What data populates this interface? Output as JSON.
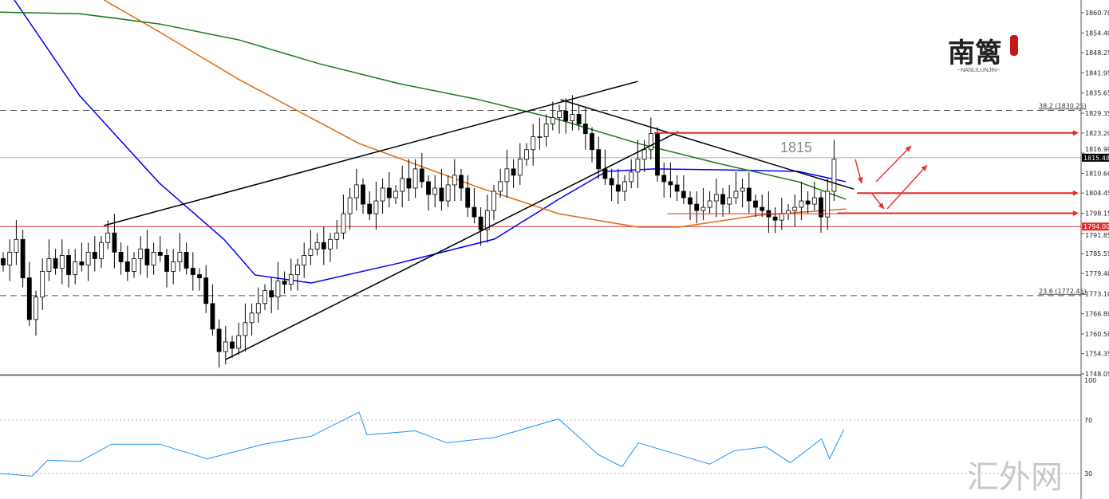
{
  "chart_data": {
    "type": "candlestick",
    "title": "",
    "price_axis": {
      "min": 1748.05,
      "max": 1860.7,
      "ticks": [
        "1860.70",
        "1854.40",
        "1848.25",
        "1841.95",
        "1835.65",
        "1829.35",
        "1823.20",
        "1816.90",
        "1810.60",
        "1804.45",
        "1798.15",
        "1791.85",
        "1785.55",
        "1779.40",
        "1773.10",
        "1766.80",
        "1760.50",
        "1754.35",
        "1748.05"
      ]
    },
    "current_price": "1815.48",
    "support_price": "1794.00",
    "closes": [
      1782,
      1786,
      1790,
      1778,
      1765,
      1772,
      1780,
      1784,
      1781,
      1785,
      1779,
      1783,
      1782,
      1786,
      1784,
      1789,
      1792,
      1786,
      1783,
      1780,
      1784,
      1787,
      1782,
      1786,
      1785,
      1780,
      1783,
      1786,
      1781,
      1779,
      1778,
      1770,
      1762,
      1755,
      1758,
      1756,
      1760,
      1764,
      1767,
      1770,
      1774,
      1772,
      1777,
      1776,
      1779,
      1782,
      1785,
      1787,
      1789,
      1787,
      1790,
      1792,
      1798,
      1803,
      1807,
      1801,
      1798,
      1802,
      1806,
      1803,
      1805,
      1809,
      1806,
      1812,
      1808,
      1804,
      1806,
      1802,
      1807,
      1810,
      1806,
      1800,
      1797,
      1793,
      1799,
      1805,
      1808,
      1812,
      1810,
      1815,
      1818,
      1822,
      1822,
      1826,
      1828,
      1830,
      1827,
      1829,
      1826,
      1823,
      1818,
      1812,
      1809,
      1807,
      1805,
      1808,
      1811,
      1815,
      1818,
      1823,
      1810,
      1808,
      1807,
      1805,
      1803,
      1801,
      1799,
      1800,
      1802,
      1804,
      1801,
      1803,
      1805,
      1806,
      1802,
      1800,
      1799,
      1797,
      1796,
      1798,
      1799,
      1800,
      1802,
      1801,
      1803,
      1797,
      1805,
      1815
    ],
    "moving_averages": [
      {
        "name": "ma-blue",
        "color": "#0000ff",
        "points": [
          [
            1.7,
            1864.7
          ],
          [
            11.7,
            1834.8
          ],
          [
            23.9,
            1807.5
          ],
          [
            33.7,
            1790.1
          ],
          [
            38.5,
            1778.9
          ],
          [
            47.1,
            1776.4
          ],
          [
            60.5,
            1782.6
          ],
          [
            75.1,
            1790.1
          ],
          [
            84.9,
            1802.5
          ],
          [
            92.2,
            1811.2
          ],
          [
            99.5,
            1812.0
          ],
          [
            109.3,
            1811.7
          ],
          [
            121.5,
            1811.2
          ],
          [
            128.8,
            1808.0
          ]
        ]
      },
      {
        "name": "ma-orange",
        "color": "#e06a10",
        "points": [
          [
            15.4,
            1864.7
          ],
          [
            23.9,
            1854.7
          ],
          [
            36.1,
            1839.8
          ],
          [
            54.4,
            1819.9
          ],
          [
            72.7,
            1806.2
          ],
          [
            84.9,
            1798.0
          ],
          [
            97.1,
            1793.8
          ],
          [
            103.2,
            1793.8
          ],
          [
            115.4,
            1797.5
          ],
          [
            128.8,
            1799.5
          ]
        ]
      },
      {
        "name": "ma-green",
        "color": "#1a7a1a",
        "points": [
          [
            -0.5,
            1860.9
          ],
          [
            11.7,
            1860.4
          ],
          [
            23.9,
            1857.2
          ],
          [
            36.1,
            1852.2
          ],
          [
            48.3,
            1844.8
          ],
          [
            60.5,
            1838.6
          ],
          [
            72.7,
            1833.6
          ],
          [
            84.9,
            1827.4
          ],
          [
            97.1,
            1819.9
          ],
          [
            109.3,
            1813.7
          ],
          [
            121.5,
            1808.0
          ],
          [
            128.8,
            1802.5
          ]
        ]
      }
    ],
    "trend_lines": [
      {
        "from": [
          15.4,
          1794.3
        ],
        "to": [
          97,
          1839.3
        ]
      },
      {
        "from": [
          34,
          1752.5
        ],
        "to": [
          103.2,
          1823.6
        ]
      },
      {
        "from": [
          85.2,
          1833.6
        ],
        "to": [
          130,
          1805.7
        ]
      }
    ],
    "fib_levels": [
      {
        "label": "38.2  (1830.25)",
        "price": 1830.25
      },
      {
        "label": "23.6  (1772.45)",
        "price": 1772.45
      }
    ],
    "arrow_levels": [
      {
        "from_index": 99.5,
        "price": 1823.2
      },
      {
        "from_index": 130.5,
        "price": 1804.45
      },
      {
        "from_index": 127.5,
        "price": 1798.15
      }
    ],
    "range_line": {
      "from_index": 101.5,
      "to_index": 128.5,
      "price": 1798.0
    },
    "annotation": "1815",
    "rsi": {
      "axis_ticks": [
        "100",
        "70",
        "30"
      ],
      "levels": [
        70,
        30
      ],
      "points": [
        [
          -0.5,
          30
        ],
        [
          4.4,
          28
        ],
        [
          6.8,
          40
        ],
        [
          11.7,
          39
        ],
        [
          16.6,
          52
        ],
        [
          23.9,
          52
        ],
        [
          31.2,
          41
        ],
        [
          39.8,
          52
        ],
        [
          47.1,
          58
        ],
        [
          54.4,
          76
        ],
        [
          55.6,
          59
        ],
        [
          63,
          62
        ],
        [
          67.8,
          53
        ],
        [
          75.1,
          57
        ],
        [
          84.9,
          71
        ],
        [
          91,
          44
        ],
        [
          94.6,
          35
        ],
        [
          97.1,
          53
        ],
        [
          103.2,
          44
        ],
        [
          108,
          37
        ],
        [
          111.7,
          47
        ],
        [
          116.6,
          50
        ],
        [
          120.3,
          38
        ],
        [
          125.1,
          56
        ],
        [
          126.3,
          41
        ],
        [
          128.5,
          63
        ]
      ]
    }
  },
  "logo": {
    "text": "南篱",
    "subtitle": "~NANLILUNJIN~"
  },
  "watermark": "汇外网"
}
